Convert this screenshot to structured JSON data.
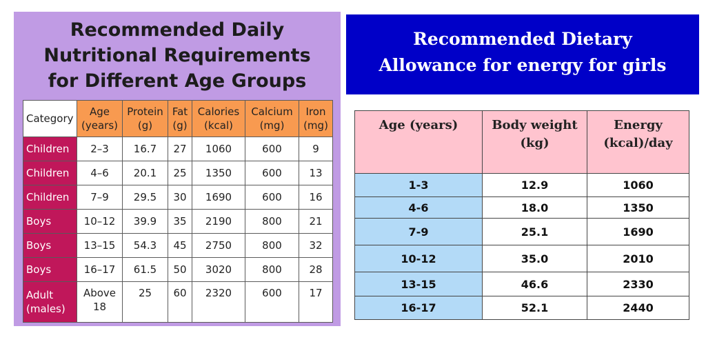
{
  "left": {
    "title_lines": [
      "Recommended Daily",
      "Nutritional Requirements",
      "for Different Age Groups"
    ],
    "headers": [
      {
        "line1": "Category",
        "line2": ""
      },
      {
        "line1": "Age",
        "line2": "(years)"
      },
      {
        "line1": "Protein",
        "line2": "(g)"
      },
      {
        "line1": "Fat",
        "line2": "(g)"
      },
      {
        "line1": "Calories",
        "line2": "(kcal)"
      },
      {
        "line1": "Calcium",
        "line2": "(mg)"
      },
      {
        "line1": "Iron",
        "line2": "(mg)"
      }
    ],
    "rows": [
      {
        "category": "Children",
        "age": "2–3",
        "protein": "16.7",
        "fat": "27",
        "calories": "1060",
        "calcium": "600",
        "iron": "9"
      },
      {
        "category": "Children",
        "age": "4–6",
        "protein": "20.1",
        "fat": "25",
        "calories": "1350",
        "calcium": "600",
        "iron": "13"
      },
      {
        "category": "Children",
        "age": "7–9",
        "protein": "29.5",
        "fat": "30",
        "calories": "1690",
        "calcium": "600",
        "iron": "16"
      },
      {
        "category": "Boys",
        "age": "10–12",
        "protein": "39.9",
        "fat": "35",
        "calories": "2190",
        "calcium": "800",
        "iron": "21"
      },
      {
        "category": "Boys",
        "age": "13–15",
        "protein": "54.3",
        "fat": "45",
        "calories": "2750",
        "calcium": "800",
        "iron": "32"
      },
      {
        "category": "Boys",
        "age": "16–17",
        "protein": "61.5",
        "fat": "50",
        "calories": "3020",
        "calcium": "800",
        "iron": "28"
      }
    ],
    "last_row": {
      "category_line1": "Adult",
      "category_line2": "(males)",
      "age_line1": "Above",
      "age_line2": "18",
      "protein": "25",
      "fat": "60",
      "calories": "2320",
      "calcium": "600",
      "iron": "17"
    },
    "colors": {
      "panel": "#c09be4",
      "header": "#f89a50",
      "category": "#c0175a"
    }
  },
  "right": {
    "title_lines": [
      "Recommended Dietary",
      "Allowance for energy for girls"
    ],
    "headers": [
      {
        "line1": "Age (years)",
        "line2": ""
      },
      {
        "line1": "Body weight",
        "line2": "(kg)"
      },
      {
        "line1": "Energy",
        "line2": "(kcal)/day"
      }
    ],
    "rows": [
      {
        "age": "1-3",
        "weight": "12.9",
        "energy": "1060"
      },
      {
        "age": "4-6",
        "weight": "18.0",
        "energy": "1350"
      },
      {
        "age": "7-9",
        "weight": "25.1",
        "energy": "1690"
      },
      {
        "age": "10-12",
        "weight": "35.0",
        "energy": "2010"
      },
      {
        "age": "13-15",
        "weight": "46.6",
        "energy": "2330"
      },
      {
        "age": "16-17",
        "weight": "52.1",
        "energy": "2440"
      }
    ],
    "colors": {
      "title_bg": "#0000c8",
      "header": "#ffc4cf",
      "age_col": "#b3daf7"
    }
  }
}
